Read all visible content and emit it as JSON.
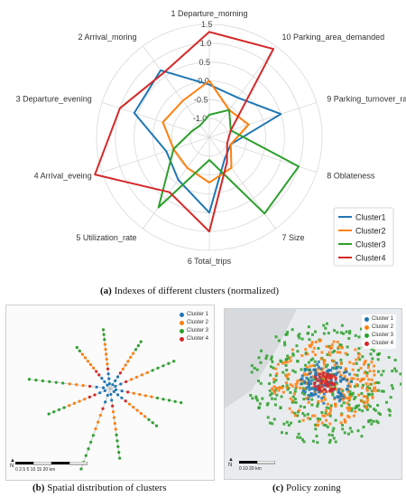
{
  "chart_data": [
    {
      "type": "radar",
      "title": "",
      "axes": [
        "1 Departure_morning",
        "10 Parking_area_demanded",
        "9 Parking_turnover_rate",
        "8 Oblateness",
        "7 Size",
        "6 Total_trips",
        "5 Utilization_rate",
        "4 Arrival_eveing",
        "3 Departure_evening",
        "2 Arrival_moring"
      ],
      "radial_ticks": [
        "-1.0",
        "-0.5",
        "0.0",
        "0.5",
        "1.0",
        "1.5"
      ],
      "rlim": [
        -1.5,
        1.5
      ],
      "grid": true,
      "legend_position": "bottom-right",
      "series": [
        {
          "name": "Cluster1",
          "color": "#1f77b4",
          "values": [
            -0.1,
            -0.2,
            0.5,
            -0.9,
            -0.8,
            0.5,
            -0.1,
            -0.3,
            0.6,
            0.7
          ]
        },
        {
          "name": "Cluster2",
          "color": "#ff7f0e",
          "values": [
            0.0,
            -0.6,
            -0.4,
            -0.9,
            -0.5,
            -0.3,
            -0.5,
            -0.5,
            -0.2,
            -0.3
          ]
        },
        {
          "name": "Cluster3",
          "color": "#2ca02c",
          "values": [
            -0.9,
            -0.6,
            -0.9,
            1.0,
            1.0,
            -0.9,
            0.8,
            -0.5,
            -1.0,
            -1.1
          ]
        },
        {
          "name": "Cluster4",
          "color": "#d62728",
          "values": [
            1.3,
            1.4,
            -0.9,
            -1.0,
            -0.7,
            1.0,
            0.3,
            1.7,
            1.0,
            0.6
          ]
        }
      ]
    }
  ],
  "captions": {
    "a_label": "(a)",
    "a_text": "Indexes of different clusters (normalized)",
    "b_label": "(b)",
    "b_text": "Spatial distribution of clusters",
    "c_label": "(c)",
    "c_text": "Policy zoning"
  },
  "maps": {
    "legend": [
      {
        "label": "Cluster 1",
        "color": "#1f77b4"
      },
      {
        "label": "Cluster 2",
        "color": "#ff7f0e"
      },
      {
        "label": "Cluster 3",
        "color": "#2ca02c"
      },
      {
        "label": "Cluster 4",
        "color": "#d62728"
      }
    ],
    "b_scale": "0 2.5 5   10   15   20",
    "b_unit": "km",
    "c_scale": "0   10  20",
    "c_unit": "km",
    "north": "N"
  }
}
